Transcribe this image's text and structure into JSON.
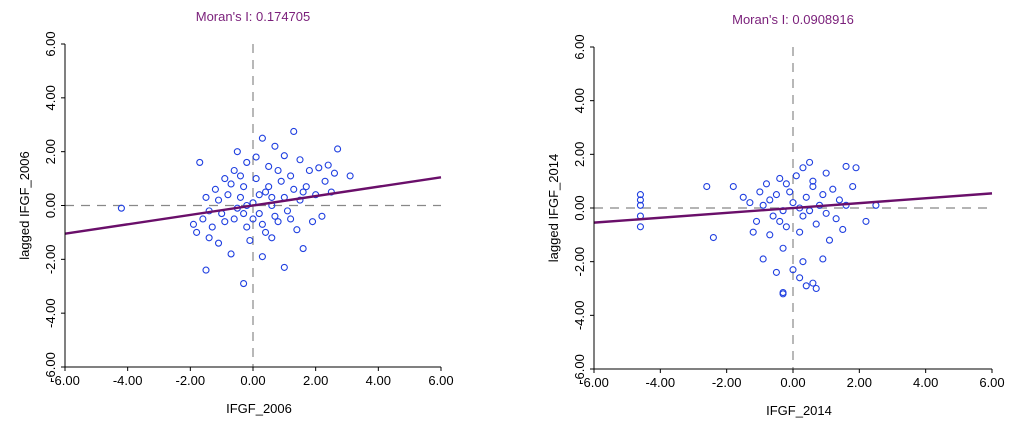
{
  "chart_data": [
    {
      "type": "scatter",
      "title": "Moran's I: 0.174705",
      "xlabel": "IFGF_2006",
      "ylabel": "lagged IFGF_2006",
      "xlim": [
        -6,
        6
      ],
      "ylim": [
        -6,
        6
      ],
      "xticks": [
        "-6.00",
        "-4.00",
        "-2.00",
        "0.00",
        "2.00",
        "4.00",
        "6.00"
      ],
      "yticks": [
        "-6.00",
        "-4.00",
        "-2.00",
        "0.00",
        "2.00",
        "4.00",
        "6.00"
      ],
      "slope": 0.174705,
      "line_color": "#6a0f6a",
      "point_color": "#1f3fe0",
      "points": [
        [
          -4.2,
          -0.1
        ],
        [
          -1.7,
          1.6
        ],
        [
          -1.5,
          -2.4
        ],
        [
          -0.3,
          -2.9
        ],
        [
          0.3,
          2.5
        ],
        [
          1.3,
          2.75
        ],
        [
          2.7,
          2.1
        ],
        [
          3.1,
          1.1
        ],
        [
          2.1,
          1.4
        ],
        [
          2.4,
          1.5
        ],
        [
          2.6,
          1.2
        ],
        [
          1.0,
          1.85
        ],
        [
          1.5,
          1.7
        ],
        [
          0.7,
          2.2
        ],
        [
          -0.5,
          2.0
        ],
        [
          0.1,
          1.8
        ],
        [
          -0.2,
          1.6
        ],
        [
          0.5,
          1.45
        ],
        [
          1.8,
          1.3
        ],
        [
          2.3,
          0.9
        ],
        [
          2.5,
          0.5
        ],
        [
          1.6,
          -1.6
        ],
        [
          1.0,
          -2.3
        ],
        [
          0.3,
          -1.9
        ],
        [
          -0.7,
          -1.8
        ],
        [
          -1.1,
          -1.4
        ],
        [
          -1.4,
          -1.2
        ],
        [
          -1.8,
          -1.0
        ],
        [
          -1.6,
          -0.5
        ],
        [
          -1.2,
          0.6
        ],
        [
          2.2,
          -0.4
        ],
        [
          2.0,
          0.4
        ],
        [
          1.7,
          0.7
        ],
        [
          1.2,
          1.1
        ],
        [
          -0.4,
          1.1
        ],
        [
          -0.9,
          1.0
        ],
        [
          0.6,
          -1.2
        ],
        [
          -0.1,
          -1.3
        ],
        [
          1.9,
          -0.6
        ],
        [
          -1.9,
          -0.7
        ],
        [
          -1.3,
          -0.8
        ],
        [
          -1.5,
          0.3
        ],
        [
          -0.8,
          0.4
        ],
        [
          -0.6,
          -0.5
        ],
        [
          -0.3,
          0.7
        ],
        [
          0.0,
          0.1
        ],
        [
          0.2,
          -0.3
        ],
        [
          0.4,
          0.5
        ],
        [
          0.6,
          0.0
        ],
        [
          0.8,
          -0.6
        ],
        [
          1.0,
          0.3
        ],
        [
          1.1,
          -0.2
        ],
        [
          1.3,
          0.6
        ],
        [
          1.4,
          -0.9
        ],
        [
          -0.2,
          -0.8
        ],
        [
          -0.5,
          -0.1
        ],
        [
          -1.0,
          -0.3
        ],
        [
          0.9,
          0.9
        ],
        [
          -0.7,
          0.8
        ],
        [
          0.3,
          -0.7
        ],
        [
          0.1,
          1.0
        ],
        [
          -0.4,
          0.3
        ],
        [
          0.7,
          -0.4
        ],
        [
          1.5,
          0.2
        ],
        [
          -1.1,
          0.2
        ],
        [
          0.5,
          0.7
        ],
        [
          -0.2,
          0.0
        ],
        [
          0.2,
          0.4
        ],
        [
          -0.9,
          -0.6
        ],
        [
          1.2,
          -0.5
        ],
        [
          0.4,
          -1.0
        ],
        [
          -0.6,
          1.3
        ],
        [
          0.8,
          1.3
        ],
        [
          1.6,
          0.5
        ],
        [
          -1.4,
          -0.2
        ],
        [
          0.0,
          -0.5
        ],
        [
          -0.3,
          -0.3
        ],
        [
          0.6,
          0.3
        ]
      ]
    },
    {
      "type": "scatter",
      "title": "Moran's I: 0.0908916",
      "xlabel": "IFGF_2014",
      "ylabel": "lagged IFGF_2014",
      "xlim": [
        -6,
        6
      ],
      "ylim": [
        -6,
        6
      ],
      "xticks": [
        "-6.00",
        "-4.00",
        "-2.00",
        "0.00",
        "2.00",
        "4.00",
        "6.00"
      ],
      "yticks": [
        "-6.00",
        "-4.00",
        "-2.00",
        "0.00",
        "2.00",
        "4.00",
        "6.00"
      ],
      "slope": 0.0908916,
      "line_color": "#6a0f6a",
      "point_color": "#1f3fe0",
      "points": [
        [
          -4.6,
          0.5
        ],
        [
          -4.6,
          0.3
        ],
        [
          -4.6,
          0.1
        ],
        [
          -4.6,
          -0.3
        ],
        [
          -4.6,
          -0.7
        ],
        [
          -2.6,
          0.8
        ],
        [
          -2.4,
          -1.1
        ],
        [
          -1.8,
          0.8
        ],
        [
          -1.5,
          0.4
        ],
        [
          -1.2,
          -0.9
        ],
        [
          -0.9,
          -1.9
        ],
        [
          -0.3,
          -1.5
        ],
        [
          -0.3,
          -3.15
        ],
        [
          -0.3,
          -3.2
        ],
        [
          0.2,
          -2.6
        ],
        [
          0.3,
          -2.0
        ],
        [
          0.4,
          -2.9
        ],
        [
          0.6,
          -2.8
        ],
        [
          0.7,
          -3.0
        ],
        [
          -0.5,
          -2.4
        ],
        [
          0.0,
          -2.3
        ],
        [
          0.9,
          -1.9
        ],
        [
          0.5,
          1.7
        ],
        [
          0.3,
          1.5
        ],
        [
          1.0,
          1.3
        ],
        [
          1.6,
          1.55
        ],
        [
          1.9,
          1.5
        ],
        [
          1.8,
          0.8
        ],
        [
          2.5,
          0.1
        ],
        [
          2.2,
          -0.5
        ],
        [
          1.5,
          -0.8
        ],
        [
          1.1,
          -1.2
        ],
        [
          -0.7,
          -1.0
        ],
        [
          -1.0,
          0.6
        ],
        [
          -1.3,
          0.2
        ],
        [
          -0.8,
          0.9
        ],
        [
          -0.4,
          1.1
        ],
        [
          0.1,
          1.2
        ],
        [
          0.6,
          1.0
        ],
        [
          1.2,
          0.7
        ],
        [
          1.4,
          0.3
        ],
        [
          1.0,
          -0.2
        ],
        [
          0.7,
          -0.6
        ],
        [
          0.2,
          -0.9
        ],
        [
          -0.2,
          -0.7
        ],
        [
          -0.6,
          -0.3
        ],
        [
          -0.9,
          0.1
        ],
        [
          -0.5,
          0.5
        ],
        [
          0.0,
          0.2
        ],
        [
          0.4,
          0.4
        ],
        [
          0.8,
          0.1
        ],
        [
          0.3,
          -0.3
        ],
        [
          -0.1,
          0.6
        ],
        [
          -0.3,
          -0.1
        ],
        [
          0.5,
          -0.1
        ],
        [
          0.9,
          0.5
        ],
        [
          -0.7,
          0.3
        ],
        [
          1.3,
          -0.4
        ],
        [
          -1.1,
          -0.5
        ],
        [
          0.6,
          0.8
        ],
        [
          -0.4,
          -0.5
        ],
        [
          0.2,
          0.0
        ],
        [
          1.6,
          0.1
        ],
        [
          -0.2,
          0.9
        ]
      ]
    }
  ]
}
